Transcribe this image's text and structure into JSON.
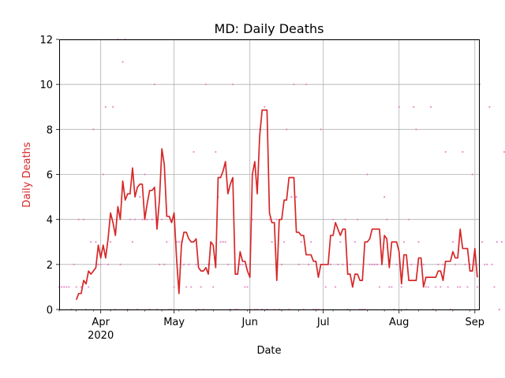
{
  "chart_data": {
    "type": "line",
    "title": "MD: Daily Deaths",
    "xlabel": "Date",
    "ylabel": "Daily Deaths",
    "ylim": [
      0,
      12
    ],
    "xlim": [
      "2020-03-15",
      "2020-09-03"
    ],
    "yticks": [
      "0",
      "2",
      "4",
      "6",
      "8",
      "10",
      "12"
    ],
    "xticks": [
      {
        "date": "2020-04-01",
        "label": "Apr",
        "sublabel": "2020"
      },
      {
        "date": "2020-05-01",
        "label": "May",
        "sublabel": ""
      },
      {
        "date": "2020-06-01",
        "label": "Jun",
        "sublabel": ""
      },
      {
        "date": "2020-07-01",
        "label": "Jul",
        "sublabel": ""
      },
      {
        "date": "2020-08-01",
        "label": "Aug",
        "sublabel": ""
      },
      {
        "date": "2020-09-01",
        "label": "Sep",
        "sublabel": ""
      }
    ],
    "grid": true,
    "colors": {
      "line": "#d62728",
      "points": "#e377c2",
      "ylabel": "#d62728",
      "grid": "#b0b0b0"
    },
    "series": [
      {
        "kind": "daily_points",
        "values": [
          1,
          1,
          1,
          1,
          1,
          0,
          2,
          1,
          4,
          1,
          4,
          0,
          1,
          3,
          8,
          3,
          2,
          2,
          6,
          9,
          2,
          3,
          9,
          0,
          12,
          2,
          11,
          12,
          0,
          4,
          3,
          4,
          0,
          5,
          4,
          6,
          4,
          0,
          4,
          10,
          0,
          2,
          4,
          2,
          3,
          0,
          0,
          1,
          3,
          3,
          3,
          2,
          1,
          2,
          1,
          7,
          2,
          0,
          1,
          0,
          10,
          2,
          3,
          1,
          7,
          5,
          3,
          3,
          3,
          2,
          0,
          10,
          0,
          0,
          2,
          2,
          1,
          1,
          0,
          4,
          0,
          0,
          8,
          0,
          9,
          0,
          4,
          3,
          0,
          4,
          0,
          2,
          3,
          8,
          0,
          5,
          10,
          5,
          2,
          3,
          0,
          10,
          2,
          3,
          0,
          0,
          0,
          8,
          0,
          1,
          2,
          2,
          4,
          1,
          2,
          3,
          2,
          4,
          0,
          2,
          1,
          3,
          4,
          0,
          0,
          0,
          6,
          2,
          2,
          2,
          2,
          1,
          2,
          5,
          4,
          1,
          1,
          0,
          2,
          9,
          1,
          3,
          0,
          4,
          2,
          9,
          8,
          3,
          2,
          2,
          1,
          1,
          9,
          0,
          1,
          2,
          1,
          2,
          7,
          1,
          0,
          3,
          2,
          1,
          1,
          7,
          2,
          1,
          2,
          6,
          2,
          1,
          10,
          3,
          2,
          2,
          9,
          2,
          1,
          3,
          0,
          3,
          7
        ]
      },
      {
        "kind": "rolling_average",
        "start": "2020-03-22",
        "values": [
          0.43,
          0.71,
          0.71,
          1.29,
          1.14,
          1.71,
          1.57,
          1.71,
          1.86,
          2.86,
          2.29,
          2.86,
          2.29,
          3.14,
          4.29,
          3.86,
          3.29,
          4.57,
          4.0,
          5.71,
          4.86,
          5.14,
          5.14,
          6.29,
          5.0,
          5.43,
          5.57,
          5.57,
          4.0,
          4.71,
          5.29,
          5.29,
          5.43,
          3.57,
          4.86,
          7.14,
          6.43,
          4.14,
          4.14,
          3.86,
          4.29,
          2.29,
          0.71,
          2.86,
          3.43,
          3.43,
          3.14,
          3.0,
          3.0,
          3.14,
          1.86,
          1.71,
          1.71,
          1.86,
          1.57,
          3.0,
          2.86,
          1.86,
          5.86,
          5.86,
          6.14,
          6.57,
          5.14,
          5.57,
          5.86,
          1.57,
          1.57,
          2.57,
          2.14,
          2.14,
          1.71,
          1.43,
          6.0,
          6.57,
          5.14,
          7.71,
          8.86,
          8.86,
          8.86,
          4.29,
          3.86,
          3.86,
          1.29,
          4.0,
          4.0,
          4.86,
          4.86,
          5.86,
          5.86,
          5.86,
          3.43,
          3.43,
          3.29,
          3.29,
          2.43,
          2.43,
          2.43,
          2.14,
          2.14,
          1.43,
          2.0,
          2.0,
          2.0,
          2.0,
          3.29,
          3.29,
          3.86,
          3.57,
          3.29,
          3.57,
          3.57,
          1.57,
          1.57,
          1.0,
          1.57,
          1.57,
          1.29,
          1.29,
          3.0,
          3.0,
          3.14,
          3.57,
          3.57,
          3.57,
          3.57,
          2.0,
          3.29,
          3.14,
          1.86,
          3.0,
          3.0,
          3.0,
          2.57,
          1.14,
          2.43,
          2.43,
          1.29,
          1.29,
          1.29,
          1.29,
          2.29,
          2.29,
          1.0,
          1.43,
          1.43,
          1.43,
          1.43,
          1.43,
          1.71,
          1.71,
          1.29,
          2.14,
          2.14,
          2.14,
          2.57,
          2.29,
          2.29,
          3.57,
          2.71,
          2.71,
          2.71,
          1.71,
          1.71,
          2.71,
          1.43
        ]
      }
    ]
  }
}
